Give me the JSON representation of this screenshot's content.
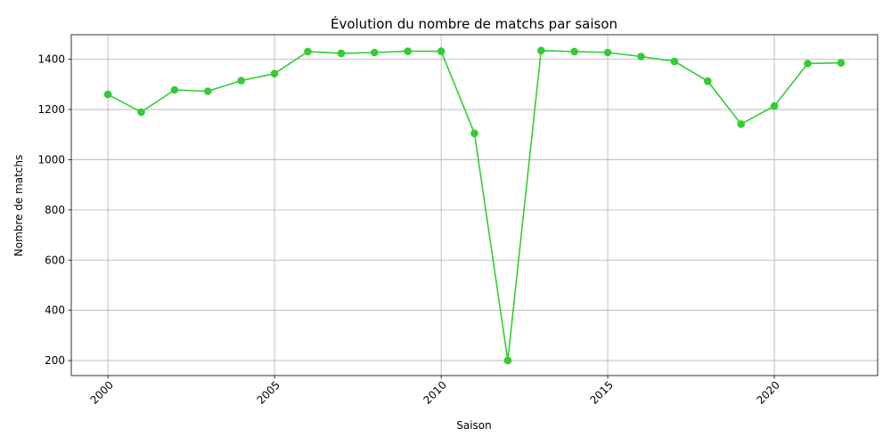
{
  "chart_data": {
    "type": "line",
    "title": "Évolution du nombre de matchs par saison",
    "xlabel": "Saison",
    "ylabel": "Nombre de matchs",
    "xlim": [
      1998.9,
      2023.1
    ],
    "ylim": [
      140,
      1498
    ],
    "x_ticks": [
      2000,
      2005,
      2010,
      2015,
      2020
    ],
    "y_ticks": [
      200,
      400,
      600,
      800,
      1000,
      1200,
      1400
    ],
    "x_tick_labels": [
      "2000",
      "2005",
      "2010",
      "2015",
      "2020"
    ],
    "y_tick_labels": [
      "200",
      "400",
      "600",
      "800",
      "1000",
      "1200",
      "1400"
    ],
    "grid": true,
    "color": "#32cd32",
    "series": [
      {
        "x": [
          2000,
          2001,
          2002,
          2003,
          2004,
          2005,
          2006,
          2007,
          2008,
          2009,
          2010,
          2011,
          2012,
          2013,
          2014,
          2015,
          2016,
          2017,
          2018,
          2019,
          2020,
          2021,
          2022
        ],
        "values": [
          1260,
          1190,
          1278,
          1273,
          1315,
          1343,
          1431,
          1424,
          1427,
          1432,
          1432,
          1105,
          200,
          1435,
          1431,
          1427,
          1411,
          1392,
          1313,
          1142,
          1214,
          1383,
          1386
        ]
      }
    ]
  }
}
